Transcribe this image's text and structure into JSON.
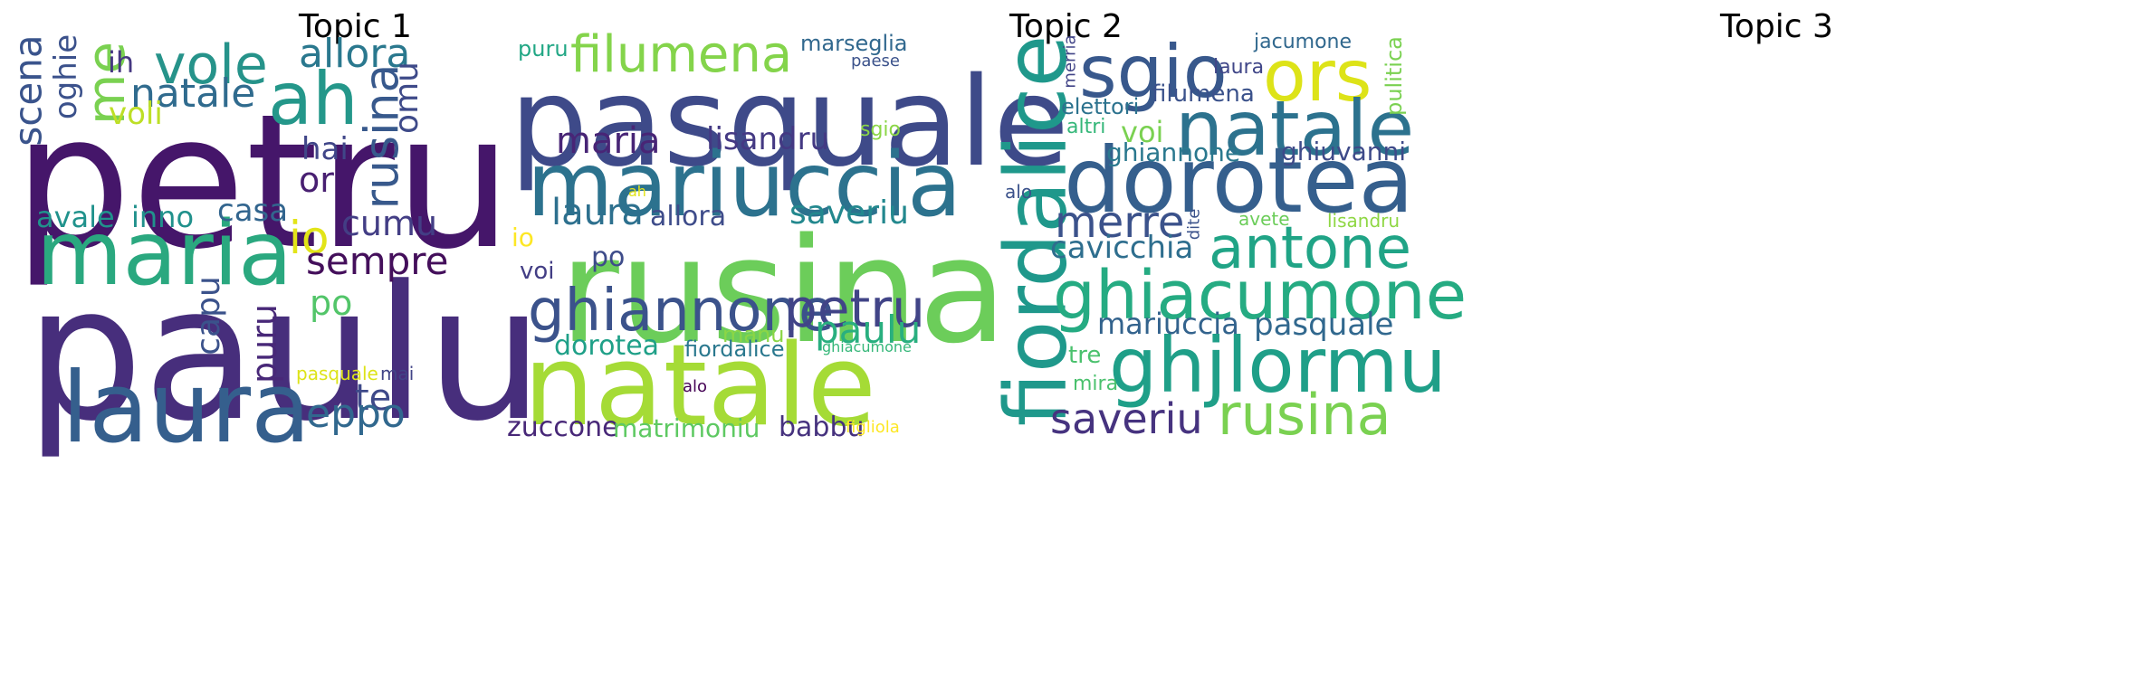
{
  "chart_data": [
    {
      "type": "wordcloud",
      "title": "Topic 1",
      "words": [
        {
          "text": "petru",
          "color": "#45166a"
        },
        {
          "text": "paulu",
          "color": "#472e7c"
        },
        {
          "text": "maria",
          "color": "#2aa87f"
        },
        {
          "text": "laura",
          "color": "#355f8d"
        },
        {
          "text": "ah",
          "color": "#24978a"
        },
        {
          "text": "vole",
          "color": "#26938a"
        },
        {
          "text": "allora",
          "color": "#2a788e"
        },
        {
          "text": "natale",
          "color": "#306b8e"
        },
        {
          "text": "me",
          "color": "#7ad151"
        },
        {
          "text": "ih",
          "color": "#453781"
        },
        {
          "text": "scena",
          "color": "#3a548c"
        },
        {
          "text": "oghie",
          "color": "#3b518b"
        },
        {
          "text": "voli",
          "color": "#bddf26"
        },
        {
          "text": "rusina",
          "color": "#38598c"
        },
        {
          "text": "omu",
          "color": "#3e4a89"
        },
        {
          "text": "hai",
          "color": "#404688"
        },
        {
          "text": "or",
          "color": "#481f71"
        },
        {
          "text": "io",
          "color": "#e2e418"
        },
        {
          "text": "avale",
          "color": "#20928c"
        },
        {
          "text": "inno",
          "color": "#21918c"
        },
        {
          "text": "casa",
          "color": "#32658e"
        },
        {
          "text": "cumu",
          "color": "#433e85"
        },
        {
          "text": "sempre",
          "color": "#440f5b"
        },
        {
          "text": "po",
          "color": "#52c569"
        },
        {
          "text": "capu",
          "color": "#3b528b"
        },
        {
          "text": "puru",
          "color": "#482878"
        },
        {
          "text": "pasquale",
          "color": "#dde318"
        },
        {
          "text": "mai",
          "color": "#414487"
        },
        {
          "text": "te",
          "color": "#3e4989"
        },
        {
          "text": "eppo",
          "color": "#31688e"
        }
      ]
    },
    {
      "type": "wordcloud",
      "title": "Topic 2",
      "words": [
        {
          "text": "pasquale",
          "color": "#3e4a89"
        },
        {
          "text": "rusina",
          "color": "#6ccd5a"
        },
        {
          "text": "natale",
          "color": "#a5db36"
        },
        {
          "text": "mariuccia",
          "color": "#2c728e"
        },
        {
          "text": "filumena",
          "color": "#84d44b"
        },
        {
          "text": "ghiannone",
          "color": "#3b528b"
        },
        {
          "text": "petru",
          "color": "#414487"
        },
        {
          "text": "maria",
          "color": "#482576"
        },
        {
          "text": "lisandru",
          "color": "#443983"
        },
        {
          "text": "laura",
          "color": "#2d708e"
        },
        {
          "text": "allora",
          "color": "#3e4c8a"
        },
        {
          "text": "saveriu",
          "color": "#23888e"
        },
        {
          "text": "paulu",
          "color": "#29af7f"
        },
        {
          "text": "puru",
          "color": "#22a785"
        },
        {
          "text": "marseglia",
          "color": "#31688e"
        },
        {
          "text": "paese",
          "color": "#3b528b"
        },
        {
          "text": "sgio",
          "color": "#8bd646"
        },
        {
          "text": "ah",
          "color": "#e2e418"
        },
        {
          "text": "io",
          "color": "#fde725"
        },
        {
          "text": "voi",
          "color": "#433e85"
        },
        {
          "text": "po",
          "color": "#3e4c8a"
        },
        {
          "text": "dorotea",
          "color": "#1fa088"
        },
        {
          "text": "manu",
          "color": "#8bd646"
        },
        {
          "text": "fiordalice",
          "color": "#2a788e"
        },
        {
          "text": "ghiacumone",
          "color": "#35b779"
        },
        {
          "text": "alo",
          "color": "#440154"
        },
        {
          "text": "zuccone",
          "color": "#482878"
        },
        {
          "text": "matrimoniu",
          "color": "#5ec962"
        },
        {
          "text": "babbu",
          "color": "#46327e"
        },
        {
          "text": "figliola",
          "color": "#fde725"
        }
      ]
    },
    {
      "type": "wordcloud",
      "title": "Topic 3",
      "words": [
        {
          "text": "fiordalice",
          "color": "#1f988b"
        },
        {
          "text": "sgio",
          "color": "#38588c"
        },
        {
          "text": "ors",
          "color": "#dde318"
        },
        {
          "text": "natale",
          "color": "#2c728e"
        },
        {
          "text": "dorotea",
          "color": "#355f8d"
        },
        {
          "text": "antone",
          "color": "#20a486"
        },
        {
          "text": "ghiacumone",
          "color": "#25ab82"
        },
        {
          "text": "ghjlormu",
          "color": "#1f9f88"
        },
        {
          "text": "rusina",
          "color": "#7ad151"
        },
        {
          "text": "saveriu",
          "color": "#46337f"
        },
        {
          "text": "merre",
          "color": "#3b528b"
        },
        {
          "text": "cavicchia",
          "color": "#2e6e8e"
        },
        {
          "text": "mariuccia",
          "color": "#33638d"
        },
        {
          "text": "pasquale",
          "color": "#31688e"
        },
        {
          "text": "jacumone",
          "color": "#31688e"
        },
        {
          "text": "laura",
          "color": "#404688"
        },
        {
          "text": "filumena",
          "color": "#3b528b"
        },
        {
          "text": "elettori",
          "color": "#2c728e"
        },
        {
          "text": "merria",
          "color": "#414487"
        },
        {
          "text": "altri",
          "color": "#35b779"
        },
        {
          "text": "voi",
          "color": "#7ad151"
        },
        {
          "text": "ghiannone",
          "color": "#2a788e"
        },
        {
          "text": "ghiuvanni",
          "color": "#3e4a89"
        },
        {
          "text": "pulitica",
          "color": "#7ad151"
        },
        {
          "text": "alo",
          "color": "#3b528b"
        },
        {
          "text": "dite",
          "color": "#3b528b"
        },
        {
          "text": "avete",
          "color": "#6ccd5a"
        },
        {
          "text": "lisandru",
          "color": "#8fd744"
        },
        {
          "text": "tre",
          "color": "#4ac16d"
        },
        {
          "text": "mira",
          "color": "#4ac16d"
        }
      ]
    }
  ]
}
